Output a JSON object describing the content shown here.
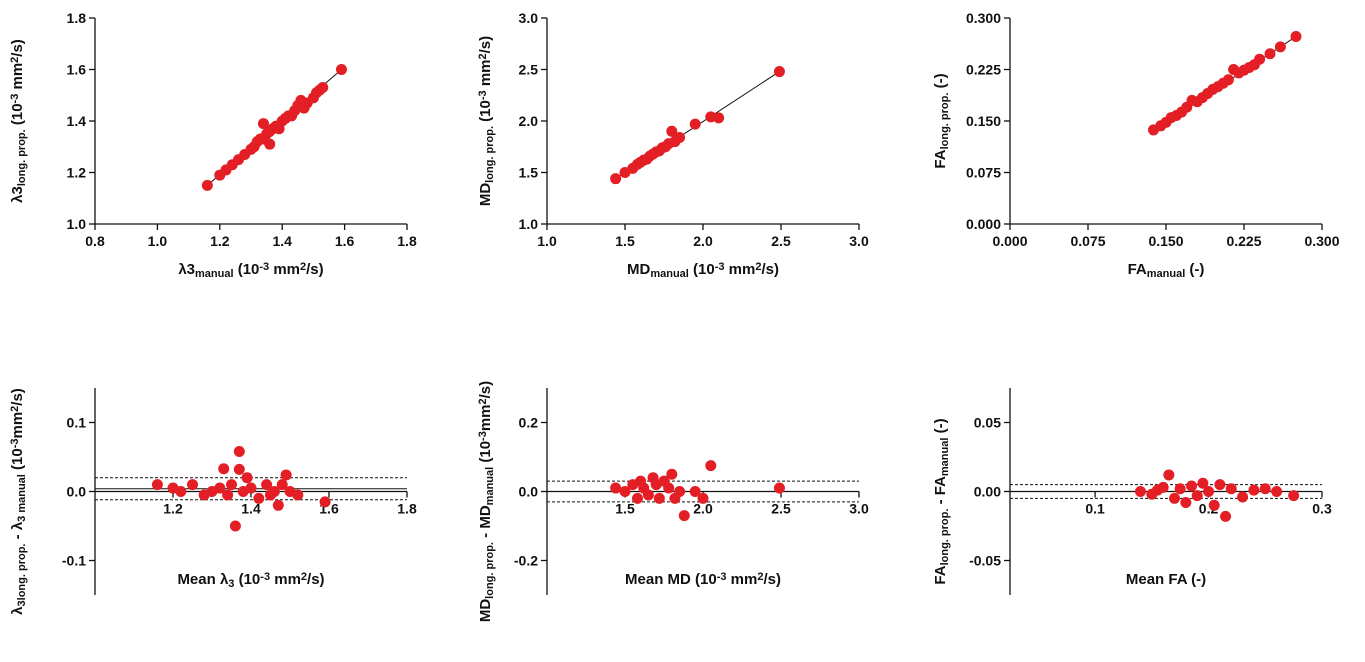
{
  "chart_data": [
    {
      "type": "scatter",
      "color": "#e31e24",
      "xlabel": [
        {
          "text": "λ3"
        },
        {
          "text": "manual",
          "pos": "sub"
        },
        {
          "text": " (10"
        },
        {
          "text": "-3",
          "pos": "sup"
        },
        {
          "text": " mm"
        },
        {
          "text": "2",
          "pos": "sup"
        },
        {
          "text": "/s)"
        }
      ],
      "ylabel": [
        {
          "text": "λ3"
        },
        {
          "text": "long. prop.",
          "pos": "sub"
        },
        {
          "text": " (10"
        },
        {
          "text": "-3",
          "pos": "sup"
        },
        {
          "text": " mm"
        },
        {
          "text": "2",
          "pos": "sup"
        },
        {
          "text": "/s)"
        }
      ],
      "xlim": [
        0.8,
        1.8
      ],
      "xticks": [
        0.8,
        {
          "value": 1,
          "label": "1.0"
        },
        1.2,
        1.4,
        1.6,
        1.8
      ],
      "ylim": [
        1.0,
        1.8
      ],
      "yticks": [
        {
          "value": 1,
          "label": "1.0"
        },
        1.2,
        1.4,
        1.6,
        1.8
      ],
      "x": [
        1.16,
        1.2,
        1.22,
        1.24,
        1.26,
        1.28,
        1.3,
        1.31,
        1.32,
        1.33,
        1.34,
        1.34,
        1.35,
        1.36,
        1.36,
        1.37,
        1.38,
        1.39,
        1.4,
        1.41,
        1.42,
        1.43,
        1.44,
        1.45,
        1.46,
        1.47,
        1.48,
        1.5,
        1.51,
        1.52,
        1.53,
        1.59
      ],
      "values": [
        1.15,
        1.19,
        1.21,
        1.23,
        1.25,
        1.27,
        1.29,
        1.3,
        1.32,
        1.33,
        1.33,
        1.39,
        1.35,
        1.36,
        1.31,
        1.37,
        1.38,
        1.37,
        1.4,
        1.41,
        1.42,
        1.42,
        1.44,
        1.46,
        1.48,
        1.45,
        1.47,
        1.49,
        1.51,
        1.52,
        1.53,
        1.6
      ],
      "fit_line": {
        "x": [
          1.16,
          1.59
        ],
        "y": [
          1.15,
          1.6
        ]
      }
    },
    {
      "type": "scatter",
      "color": "#e31e24",
      "xlabel": [
        {
          "text": "MD"
        },
        {
          "text": "manual",
          "pos": "sub"
        },
        {
          "text": " (10"
        },
        {
          "text": "-3",
          "pos": "sup"
        },
        {
          "text": " mm"
        },
        {
          "text": "2",
          "pos": "sup"
        },
        {
          "text": "/s)"
        }
      ],
      "ylabel": [
        {
          "text": "MD"
        },
        {
          "text": "long. prop.",
          "pos": "sub"
        },
        {
          "text": " (10"
        },
        {
          "text": "-3",
          "pos": "sup"
        },
        {
          "text": " mm"
        },
        {
          "text": "2",
          "pos": "sup"
        },
        {
          "text": "/s)"
        }
      ],
      "xlim": [
        1,
        3
      ],
      "xticks": [
        {
          "value": 1,
          "label": "1.0"
        },
        1.5,
        {
          "value": 2,
          "label": "2.0"
        },
        2.5,
        {
          "value": 3,
          "label": "3.0"
        }
      ],
      "ylim": [
        1,
        3
      ],
      "yticks": [
        {
          "value": 1,
          "label": "1.0"
        },
        1.5,
        {
          "value": 2,
          "label": "2.0"
        },
        2.5,
        {
          "value": 3,
          "label": "3.0"
        }
      ],
      "x": [
        1.44,
        1.5,
        1.55,
        1.58,
        1.6,
        1.62,
        1.64,
        1.66,
        1.68,
        1.7,
        1.72,
        1.74,
        1.76,
        1.78,
        1.8,
        1.82,
        1.85,
        1.95,
        2.05,
        2.1,
        2.49
      ],
      "values": [
        1.44,
        1.5,
        1.54,
        1.58,
        1.6,
        1.62,
        1.63,
        1.66,
        1.68,
        1.7,
        1.71,
        1.74,
        1.75,
        1.78,
        1.9,
        1.8,
        1.84,
        1.97,
        2.04,
        2.03,
        2.48
      ],
      "fit_line": {
        "x": [
          1.44,
          2.49
        ],
        "y": [
          1.44,
          2.48
        ]
      }
    },
    {
      "type": "scatter",
      "color": "#e31e24",
      "xlabel": [
        {
          "text": "FA"
        },
        {
          "text": "manual",
          "pos": "sub"
        },
        {
          "text": " (-)"
        }
      ],
      "ylabel": [
        {
          "text": "FA"
        },
        {
          "text": "long. prop.",
          "pos": "sub"
        },
        {
          "text": " (-)"
        }
      ],
      "xlim": [
        0,
        0.3
      ],
      "xticks": [
        {
          "value": 0,
          "label": "0.000"
        },
        0.075,
        {
          "value": 0.15,
          "label": "0.150"
        },
        0.225,
        {
          "value": 0.3,
          "label": "0.300"
        }
      ],
      "ylim": [
        0,
        0.3
      ],
      "yticks": [
        {
          "value": 0,
          "label": "0.000"
        },
        0.075,
        {
          "value": 0.15,
          "label": "0.150"
        },
        0.225,
        {
          "value": 0.3,
          "label": "0.300"
        }
      ],
      "x": [
        0.138,
        0.145,
        0.15,
        0.155,
        0.16,
        0.165,
        0.17,
        0.175,
        0.18,
        0.185,
        0.19,
        0.195,
        0.2,
        0.205,
        0.21,
        0.215,
        0.22,
        0.225,
        0.23,
        0.235,
        0.24,
        0.25,
        0.26,
        0.275
      ],
      "values": [
        0.137,
        0.143,
        0.148,
        0.155,
        0.158,
        0.163,
        0.17,
        0.18,
        0.178,
        0.184,
        0.19,
        0.196,
        0.2,
        0.205,
        0.21,
        0.225,
        0.22,
        0.224,
        0.228,
        0.232,
        0.24,
        0.248,
        0.258,
        0.273
      ],
      "fit_line": {
        "x": [
          0.138,
          0.275
        ],
        "y": [
          0.137,
          0.273
        ]
      }
    },
    {
      "type": "bland-altman",
      "color": "#e31e24",
      "xlabel": [
        {
          "text": "Mean λ"
        },
        {
          "text": "3",
          "pos": "sub"
        },
        {
          "text": " (10"
        },
        {
          "text": "-3",
          "pos": "sup"
        },
        {
          "text": " mm"
        },
        {
          "text": "2",
          "pos": "sup"
        },
        {
          "text": "/s)"
        }
      ],
      "ylabel": [
        {
          "text": "λ"
        },
        {
          "text": "3long. prop.",
          "pos": "sub"
        },
        {
          "text": " - λ"
        },
        {
          "text": "3 manual",
          "pos": "sub"
        },
        {
          "text": " (10"
        },
        {
          "text": "-3",
          "pos": "sup"
        },
        {
          "text": "mm"
        },
        {
          "text": "2",
          "pos": "sup"
        },
        {
          "text": "/s)"
        }
      ],
      "xlim": [
        1.0,
        1.8
      ],
      "xticks": [
        1.2,
        1.4,
        1.6,
        1.8
      ],
      "ylim": [
        -0.15,
        0.15
      ],
      "yticks": [
        -0.1,
        {
          "value": 0,
          "label": "0.0"
        },
        0.1
      ],
      "x": [
        1.16,
        1.2,
        1.22,
        1.25,
        1.28,
        1.3,
        1.32,
        1.33,
        1.34,
        1.35,
        1.36,
        1.37,
        1.37,
        1.38,
        1.39,
        1.4,
        1.42,
        1.44,
        1.45,
        1.46,
        1.47,
        1.48,
        1.49,
        1.5,
        1.52,
        1.59
      ],
      "values": [
        0.01,
        0.005,
        0.0,
        0.01,
        -0.005,
        0.0,
        0.005,
        0.033,
        -0.005,
        0.01,
        -0.05,
        0.058,
        0.032,
        0.0,
        0.02,
        0.005,
        -0.01,
        0.01,
        -0.005,
        0.0,
        -0.02,
        0.01,
        0.024,
        0.0,
        -0.005,
        -0.015
      ],
      "bias": 0.004,
      "limits": [
        0.02,
        -0.012
      ]
    },
    {
      "type": "bland-altman",
      "color": "#e31e24",
      "xlabel": [
        {
          "text": "Mean MD (10"
        },
        {
          "text": "-3",
          "pos": "sup"
        },
        {
          "text": " mm"
        },
        {
          "text": "2",
          "pos": "sup"
        },
        {
          "text": "/s)"
        }
      ],
      "ylabel": [
        {
          "text": "MD"
        },
        {
          "text": "long. prop.",
          "pos": "sub"
        },
        {
          "text": " - MD"
        },
        {
          "text": "manual",
          "pos": "sub"
        },
        {
          "text": " (10"
        },
        {
          "text": "-3",
          "pos": "sup"
        },
        {
          "text": "mm"
        },
        {
          "text": "2",
          "pos": "sup"
        },
        {
          "text": "/s)"
        }
      ],
      "xlim": [
        1,
        3
      ],
      "xticks": [
        1.5,
        {
          "value": 2,
          "label": "2.0"
        },
        2.5,
        {
          "value": 3,
          "label": "3.0"
        }
      ],
      "ylim": [
        -0.3,
        0.3
      ],
      "yticks": [
        -0.2,
        {
          "value": 0,
          "label": "0.0"
        },
        0.2
      ],
      "x": [
        1.44,
        1.5,
        1.55,
        1.58,
        1.6,
        1.62,
        1.65,
        1.68,
        1.7,
        1.72,
        1.75,
        1.78,
        1.8,
        1.82,
        1.85,
        1.88,
        1.95,
        2.0,
        2.05,
        2.49
      ],
      "values": [
        0.01,
        0.0,
        0.02,
        -0.02,
        0.03,
        0.01,
        -0.01,
        0.04,
        0.02,
        -0.02,
        0.03,
        0.01,
        0.05,
        -0.02,
        0.0,
        -0.07,
        0.0,
        -0.02,
        0.075,
        0.01
      ],
      "bias": 0.0,
      "limits": [
        0.03,
        -0.03
      ]
    },
    {
      "type": "bland-altman",
      "color": "#e31e24",
      "xlabel": [
        {
          "text": "Mean FA (-)"
        }
      ],
      "ylabel": [
        {
          "text": "FA"
        },
        {
          "text": "long. prop.",
          "pos": "sub"
        },
        {
          "text": " - FA"
        },
        {
          "text": "manual",
          "pos": "sub"
        },
        {
          "text": " (-)"
        }
      ],
      "xlim": [
        0.025,
        0.3
      ],
      "xticks": [
        0.1,
        0.2,
        0.3
      ],
      "ylim": [
        -0.075,
        0.075
      ],
      "yticks": [
        -0.05,
        {
          "value": 0,
          "label": "0.00"
        },
        0.05
      ],
      "x": [
        0.14,
        0.15,
        0.155,
        0.16,
        0.165,
        0.17,
        0.175,
        0.18,
        0.185,
        0.19,
        0.195,
        0.2,
        0.205,
        0.21,
        0.215,
        0.22,
        0.23,
        0.24,
        0.25,
        0.26,
        0.275
      ],
      "values": [
        0.0,
        -0.002,
        0.001,
        0.003,
        0.012,
        -0.005,
        0.002,
        -0.008,
        0.004,
        -0.003,
        0.006,
        0.0,
        -0.01,
        0.005,
        -0.018,
        0.002,
        -0.004,
        0.001,
        0.002,
        0.0,
        -0.003
      ],
      "bias": 0.0,
      "limits": [
        0.005,
        -0.005
      ]
    }
  ]
}
